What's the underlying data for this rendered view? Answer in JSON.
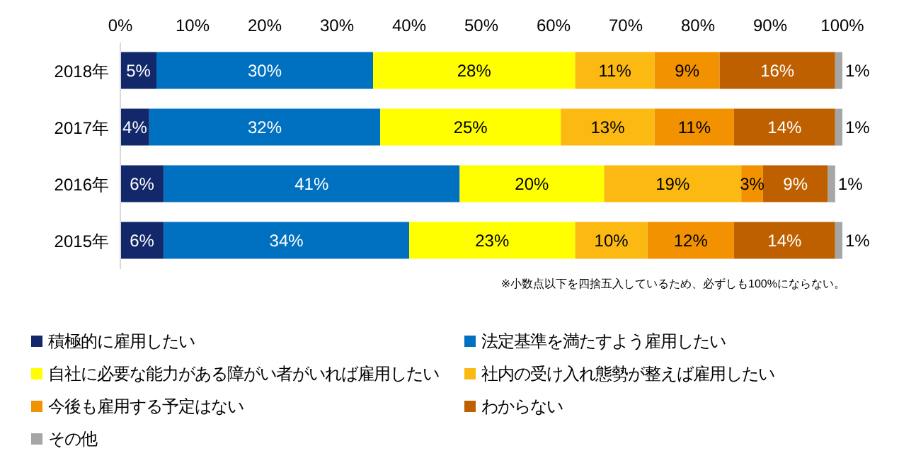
{
  "chart_data": {
    "type": "bar",
    "orientation": "horizontal",
    "stacked": true,
    "categories": [
      "2018年",
      "2017年",
      "2016年",
      "2015年"
    ],
    "xlim": [
      0,
      100
    ],
    "xticks": [
      {
        "value": 0,
        "label": "0%"
      },
      {
        "value": 10,
        "label": "10%"
      },
      {
        "value": 20,
        "label": "20%"
      },
      {
        "value": 30,
        "label": "30%"
      },
      {
        "value": 40,
        "label": "40%"
      },
      {
        "value": 50,
        "label": "50%"
      },
      {
        "value": 60,
        "label": "60%"
      },
      {
        "value": 70,
        "label": "70%"
      },
      {
        "value": 80,
        "label": "80%"
      },
      {
        "value": 90,
        "label": "90%"
      },
      {
        "value": 100,
        "label": "100%"
      }
    ],
    "series": [
      {
        "name": "積極的に雇用したい",
        "color": "#13286b",
        "values": [
          5,
          4,
          6,
          6
        ],
        "value_labels": [
          "5%",
          "4%",
          "6%",
          "6%"
        ]
      },
      {
        "name": "法定基準を満たすよう雇用したい",
        "color": "#0070c0",
        "values": [
          30,
          32,
          41,
          34
        ],
        "value_labels": [
          "30%",
          "32%",
          "41%",
          "34%"
        ]
      },
      {
        "name": "自社に必要な能力がある障がい者がいれば雇用したい",
        "color": "#ffff00",
        "values": [
          28,
          25,
          20,
          23
        ],
        "value_labels": [
          "28%",
          "25%",
          "20%",
          "23%"
        ]
      },
      {
        "name": "社内の受け入れ態勢が整えば雇用したい",
        "color": "#fbb912",
        "values": [
          11,
          13,
          19,
          10
        ],
        "value_labels": [
          "11%",
          "13%",
          "19%",
          "10%"
        ]
      },
      {
        "name": "今後も雇用する予定はない",
        "color": "#f39200",
        "values": [
          9,
          11,
          3,
          12
        ],
        "value_labels": [
          "9%",
          "11%",
          "3%",
          "12%"
        ]
      },
      {
        "name": "わからない",
        "color": "#bf6000",
        "values": [
          16,
          14,
          9,
          14
        ],
        "value_labels": [
          "16%",
          "14%",
          "9%",
          "14%"
        ]
      },
      {
        "name": "その他",
        "color": "#a6a6a6",
        "values": [
          1,
          1,
          1,
          1
        ],
        "value_labels": [
          "1%",
          "1%",
          "1%",
          "1%"
        ]
      }
    ],
    "legend": "bottom",
    "annotations": [
      "※小数点以下を四捨五入しているため、必ずしも100%にならない。"
    ]
  }
}
